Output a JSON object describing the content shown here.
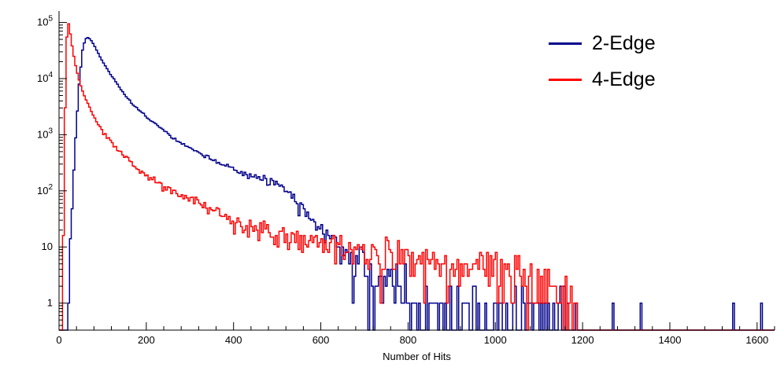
{
  "legend": {
    "position": "top-right"
  },
  "chart_data": {
    "type": "line",
    "style": "histogram-step-logy",
    "title": "",
    "xlabel": "Number of Hits",
    "ylabel": "",
    "xlim": [
      0,
      1640
    ],
    "ylim": [
      0.33,
      160000
    ],
    "x_ticks": [
      0,
      200,
      400,
      600,
      800,
      1000,
      1200,
      1400,
      1600
    ],
    "x_minor_step": 40,
    "y_ticks": [
      {
        "v": 1,
        "label": "1"
      },
      {
        "v": 10,
        "label": "10"
      },
      {
        "v": 100,
        "label": "10",
        "exp": "2"
      },
      {
        "v": 1000,
        "label": "10",
        "exp": "3"
      },
      {
        "v": 10000,
        "label": "10",
        "exp": "4"
      },
      {
        "v": 100000,
        "label": "10",
        "exp": "5"
      }
    ],
    "bin_width": 4,
    "seed": 1337,
    "series": [
      {
        "name": "2-Edge",
        "color": "#00008b",
        "peak": {
          "x": 64,
          "y": 55000
        },
        "envelope": [
          [
            22,
            2
          ],
          [
            30,
            60
          ],
          [
            38,
            900
          ],
          [
            46,
            8000
          ],
          [
            54,
            32000
          ],
          [
            60,
            50000
          ],
          [
            66,
            54000
          ],
          [
            72,
            50000
          ],
          [
            80,
            40000
          ],
          [
            90,
            28000
          ],
          [
            100,
            20000
          ],
          [
            115,
            13000
          ],
          [
            130,
            8800
          ],
          [
            150,
            5200
          ],
          [
            170,
            3400
          ],
          [
            200,
            2100
          ],
          [
            230,
            1400
          ],
          [
            260,
            900
          ],
          [
            290,
            640
          ],
          [
            320,
            480
          ],
          [
            350,
            360
          ],
          [
            380,
            285
          ],
          [
            410,
            230
          ],
          [
            440,
            185
          ],
          [
            470,
            165
          ],
          [
            495,
            140
          ],
          [
            515,
            112
          ],
          [
            535,
            82
          ],
          [
            560,
            50
          ],
          [
            580,
            32
          ],
          [
            600,
            22
          ],
          [
            620,
            16
          ],
          [
            640,
            11
          ],
          [
            660,
            8
          ],
          [
            680,
            6
          ],
          [
            700,
            4.5
          ],
          [
            730,
            2.8
          ],
          [
            760,
            1.8
          ],
          [
            800,
            1.2
          ],
          [
            850,
            0.9
          ],
          [
            900,
            0.7
          ],
          [
            950,
            0.6
          ],
          [
            1000,
            0.55
          ],
          [
            1050,
            0.5
          ],
          [
            1100,
            0.5
          ],
          [
            1140,
            0.6
          ],
          [
            1170,
            0.5
          ],
          [
            1185,
            0.25
          ],
          [
            1196,
            0.002
          ],
          [
            1640,
            0.002
          ]
        ],
        "extra_spikes": [
          [
            1268,
            1
          ],
          [
            1332,
            1
          ],
          [
            1546,
            1
          ],
          [
            1608,
            1
          ]
        ]
      },
      {
        "name": "4-Edge",
        "color": "#ff0000",
        "peak": {
          "x": 20,
          "y": 105000
        },
        "envelope": [
          [
            8,
            1
          ],
          [
            11,
            40
          ],
          [
            14,
            3000
          ],
          [
            17,
            40000
          ],
          [
            20,
            105000
          ],
          [
            23,
            90000
          ],
          [
            27,
            55000
          ],
          [
            32,
            30000
          ],
          [
            38,
            17000
          ],
          [
            45,
            10000
          ],
          [
            55,
            5600
          ],
          [
            70,
            3000
          ],
          [
            85,
            1800
          ],
          [
            100,
            1150
          ],
          [
            120,
            720
          ],
          [
            140,
            500
          ],
          [
            165,
            330
          ],
          [
            200,
            190
          ],
          [
            230,
            135
          ],
          [
            260,
            100
          ],
          [
            290,
            78
          ],
          [
            320,
            60
          ],
          [
            350,
            46
          ],
          [
            380,
            35
          ],
          [
            410,
            28
          ],
          [
            440,
            23
          ],
          [
            470,
            20
          ],
          [
            500,
            17
          ],
          [
            540,
            14
          ],
          [
            580,
            12
          ],
          [
            620,
            11
          ],
          [
            660,
            9.5
          ],
          [
            700,
            8.5
          ],
          [
            750,
            7.5
          ],
          [
            800,
            6.5
          ],
          [
            850,
            6
          ],
          [
            900,
            5.5
          ],
          [
            950,
            5
          ],
          [
            1000,
            4.2
          ],
          [
            1040,
            3.4
          ],
          [
            1080,
            2.6
          ],
          [
            1120,
            2
          ],
          [
            1150,
            1.4
          ],
          [
            1175,
            0.9
          ],
          [
            1186,
            0.25
          ],
          [
            1192,
            0.002
          ],
          [
            1640,
            0
          ]
        ],
        "extra_spikes": []
      }
    ]
  }
}
